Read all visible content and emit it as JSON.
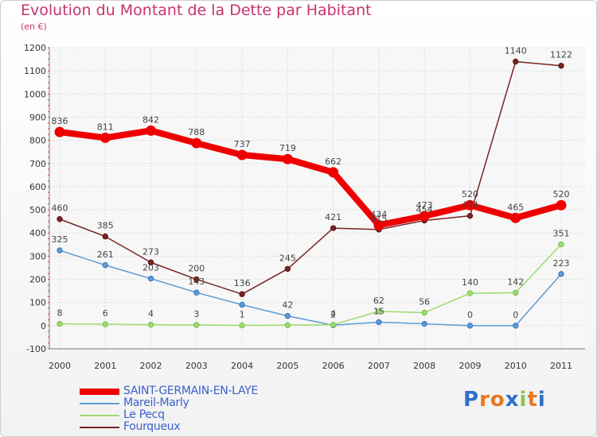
{
  "header": {
    "title": "Evolution du Montant de la Dette par Habitant",
    "subtitle": "(en €)"
  },
  "logo": {
    "text": "Proxiti",
    "colors": [
      "#2e6fc9",
      "#e87722",
      "#e87722",
      "#2e6fc9",
      "#8bc34a",
      "#e87722",
      "#2e6fc9"
    ]
  },
  "chart_data": {
    "type": "line",
    "title": "Evolution du Montant de la Dette par Habitant",
    "subtitle": "(en €)",
    "x": [
      "2000",
      "2001",
      "2002",
      "2003",
      "2004",
      "2005",
      "2006",
      "2007",
      "2008",
      "2009",
      "2010",
      "2011"
    ],
    "ylim": [
      -100,
      1200
    ],
    "yticks": [
      "-100",
      "0",
      "100",
      "200",
      "300",
      "400",
      "500",
      "600",
      "700",
      "800",
      "900",
      "1000",
      "1100",
      "1200"
    ],
    "grid": true,
    "legend": "bottom-left",
    "series": [
      {
        "name": "SAINT-GERMAIN-EN-LAYE",
        "color": "#ee0000",
        "values": [
          836,
          811,
          842,
          788,
          737,
          719,
          662,
          434,
          473,
          520,
          465,
          520
        ],
        "labels": [
          "836",
          "811",
          "842",
          "788",
          "737",
          "719",
          "662",
          "434",
          "473",
          "520",
          "465",
          "520"
        ]
      },
      {
        "name": "Mareil-Marly",
        "color": "#5b9bd5",
        "values": [
          325,
          261,
          203,
          143,
          90,
          42,
          2,
          15,
          8,
          0,
          0,
          223
        ],
        "labels": [
          "325",
          "261",
          "203",
          "143",
          "",
          "42",
          "2",
          "15",
          "",
          "0",
          "0",
          "223"
        ]
      },
      {
        "name": "Le Pecq",
        "color": "#9edb6e",
        "values": [
          8,
          6,
          4,
          3,
          1,
          2,
          4,
          62,
          56,
          140,
          142,
          351
        ],
        "labels": [
          "8",
          "6",
          "4",
          "3",
          "1",
          "",
          "4",
          "62",
          "56",
          "140",
          "142",
          "351"
        ]
      },
      {
        "name": "Fourqueux",
        "color": "#7b2323",
        "values": [
          460,
          385,
          273,
          200,
          136,
          245,
          421,
          415,
          454,
          474,
          1140,
          1122
        ],
        "labels": [
          "460",
          "385",
          "273",
          "200",
          "136",
          "245",
          "421",
          "415",
          "454",
          "474",
          "1140",
          "1122"
        ]
      }
    ]
  }
}
